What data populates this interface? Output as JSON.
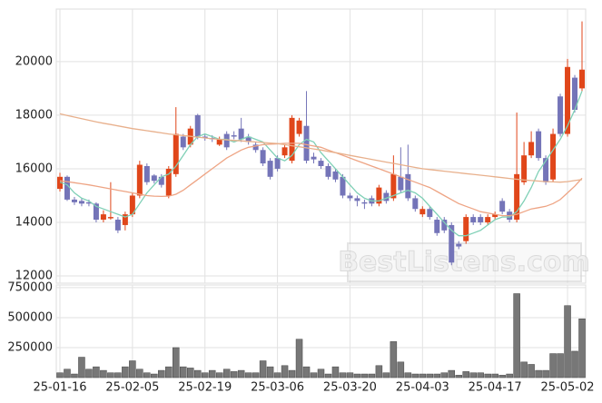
{
  "chart_data": [
    {
      "type": "candlestick",
      "categories": [
        "25-01-16",
        null,
        null,
        null,
        null,
        null,
        null,
        null,
        null,
        null,
        "25-02-05",
        null,
        null,
        null,
        null,
        null,
        null,
        null,
        null,
        null,
        "25-02-19",
        null,
        null,
        null,
        null,
        null,
        null,
        null,
        null,
        null,
        "25-03-06",
        null,
        null,
        null,
        null,
        null,
        null,
        null,
        null,
        null,
        "25-03-20",
        null,
        null,
        null,
        null,
        null,
        null,
        null,
        null,
        null,
        "25-04-03",
        null,
        null,
        null,
        null,
        null,
        null,
        null,
        null,
        null,
        "25-04-17",
        null,
        null,
        null,
        null,
        null,
        null,
        null,
        null,
        null,
        "25-05-02",
        null,
        null
      ],
      "open": [
        15250,
        15700,
        14850,
        14800,
        14750,
        14700,
        14100,
        14150,
        14100,
        13900,
        14300,
        15000,
        16100,
        15750,
        15700,
        15000,
        15800,
        17200,
        16900,
        18000,
        17200,
        17150,
        16900,
        17300,
        17250,
        17500,
        17200,
        16900,
        16700,
        16300,
        16400,
        16500,
        16300,
        17300,
        17600,
        16450,
        16300,
        16100,
        15900,
        15700,
        15000,
        14900,
        14750,
        14900,
        14700,
        15100,
        14900,
        15700,
        15800,
        14900,
        14300,
        14500,
        14100,
        14100,
        13900,
        13200,
        13300,
        14200,
        14200,
        14000,
        14200,
        14800,
        14400,
        14100,
        15500,
        16500,
        17400,
        16400,
        15600,
        18700,
        17300,
        19400,
        19000
      ],
      "high": [
        15850,
        15750,
        14950,
        14900,
        14850,
        14750,
        14450,
        15500,
        14200,
        14400,
        15100,
        16300,
        16200,
        15800,
        15800,
        16100,
        18300,
        17300,
        17600,
        18050,
        17300,
        17250,
        17200,
        17400,
        17400,
        17900,
        17300,
        17000,
        16800,
        16400,
        16500,
        16900,
        18000,
        17900,
        18900,
        16600,
        16400,
        16200,
        16000,
        15800,
        15100,
        15000,
        14850,
        15000,
        15400,
        15200,
        16500,
        16800,
        16900,
        15000,
        14600,
        14600,
        14200,
        14200,
        14000,
        13300,
        14300,
        14300,
        14300,
        14300,
        14400,
        14900,
        14500,
        18100,
        17000,
        17400,
        17500,
        16500,
        17500,
        18800,
        20100,
        19500,
        21500
      ],
      "low": [
        15150,
        14800,
        14650,
        14600,
        14600,
        14000,
        14000,
        14100,
        13600,
        13700,
        14200,
        14900,
        15400,
        15450,
        15300,
        14900,
        15700,
        16700,
        16800,
        17100,
        17050,
        17000,
        16850,
        16700,
        17100,
        17000,
        16900,
        16600,
        16100,
        15600,
        15900,
        16400,
        16200,
        17200,
        16200,
        16200,
        16000,
        15600,
        15500,
        14900,
        14800,
        14600,
        14500,
        14600,
        14600,
        14700,
        14800,
        15100,
        14800,
        14400,
        14200,
        14100,
        13500,
        13600,
        12400,
        13000,
        13200,
        13900,
        13900,
        13900,
        14100,
        14300,
        14000,
        14000,
        15400,
        16400,
        16300,
        15400,
        15500,
        17200,
        17200,
        18100,
        18900
      ],
      "close": [
        15700,
        14850,
        14750,
        14700,
        14700,
        14100,
        14300,
        14200,
        13700,
        14300,
        15000,
        16150,
        15500,
        15550,
        15400,
        16000,
        17300,
        16800,
        17500,
        17200,
        17150,
        17100,
        17100,
        16800,
        17200,
        17100,
        17000,
        16700,
        16200,
        15700,
        16000,
        16800,
        17900,
        17800,
        16300,
        16350,
        16100,
        15700,
        15600,
        15000,
        14900,
        14800,
        14700,
        14700,
        15300,
        14800,
        15800,
        15200,
        14900,
        14500,
        14500,
        14200,
        13600,
        13700,
        12500,
        13100,
        14200,
        14000,
        14000,
        14200,
        14300,
        14400,
        14100,
        15800,
        16500,
        17000,
        16400,
        15500,
        17300,
        17300,
        19800,
        18200,
        19700
      ],
      "up_color": "#e0461a",
      "down_color": "#7474b8",
      "series": [
        {
          "color": "#7fd0b6",
          "values": [
            15500,
            15400,
            15100,
            14900,
            14800,
            14600,
            14500,
            14400,
            14300,
            14200,
            14300,
            14700,
            15100,
            15400,
            15700,
            15800,
            16100,
            16500,
            16900,
            17200,
            17300,
            17200,
            17100,
            17100,
            17000,
            17100,
            17200,
            17100,
            17000,
            16700,
            16400,
            16300,
            16500,
            16900,
            17100,
            17000,
            16600,
            16300,
            16000,
            15700,
            15400,
            15100,
            14900,
            14800,
            14800,
            14900,
            15000,
            15100,
            15200,
            15100,
            14900,
            14600,
            14300,
            14000,
            13700,
            13500,
            13500,
            13600,
            13700,
            13900,
            14100,
            14200,
            14200,
            14400,
            14800,
            15300,
            15900,
            16300,
            16700,
            17100,
            17600,
            18200,
            18900
          ]
        },
        {
          "color": "#eea484",
          "values": [
            15550,
            15520,
            15480,
            15440,
            15400,
            15350,
            15300,
            15250,
            15200,
            15150,
            15100,
            15050,
            15000,
            14980,
            14970,
            14980,
            15050,
            15200,
            15400,
            15600,
            15800,
            16000,
            16200,
            16400,
            16550,
            16700,
            16800,
            16850,
            16900,
            16920,
            16930,
            16950,
            16950,
            16950,
            16900,
            16850,
            16800,
            16700,
            16600,
            16500,
            16400,
            16300,
            16200,
            16100,
            16000,
            15900,
            15800,
            15700,
            15600,
            15500,
            15400,
            15300,
            15150,
            15000,
            14850,
            14700,
            14600,
            14500,
            14400,
            14350,
            14300,
            14250,
            14250,
            14300,
            14400,
            14500,
            14550,
            14600,
            14700,
            14850,
            15100,
            15350,
            15650
          ]
        },
        {
          "color": "#e8b08c",
          "values": [
            18050,
            17990,
            17930,
            17870,
            17810,
            17750,
            17700,
            17650,
            17600,
            17550,
            17500,
            17460,
            17420,
            17380,
            17340,
            17300,
            17270,
            17240,
            17210,
            17180,
            17150,
            17120,
            17100,
            17080,
            17060,
            17040,
            17020,
            17000,
            16980,
            16960,
            16940,
            16900,
            16860,
            16820,
            16780,
            16740,
            16700,
            16650,
            16600,
            16550,
            16500,
            16450,
            16400,
            16350,
            16300,
            16250,
            16200,
            16150,
            16100,
            16050,
            16000,
            15970,
            15940,
            15910,
            15880,
            15850,
            15820,
            15790,
            15760,
            15730,
            15700,
            15670,
            15640,
            15610,
            15580,
            15560,
            15540,
            15520,
            15510,
            15500,
            15520,
            15560,
            15600
          ]
        }
      ],
      "ylim": [
        11730,
        21960
      ],
      "yticks": [
        12000,
        14000,
        16000,
        18000,
        20000
      ],
      "grid": true,
      "watermark": "BestListens.com"
    },
    {
      "type": "bar",
      "color": "#777777",
      "values": [
        40000,
        70000,
        30000,
        170000,
        70000,
        90000,
        60000,
        40000,
        40000,
        90000,
        140000,
        70000,
        40000,
        30000,
        60000,
        90000,
        250000,
        90000,
        80000,
        60000,
        40000,
        60000,
        40000,
        70000,
        50000,
        60000,
        40000,
        40000,
        140000,
        90000,
        40000,
        100000,
        60000,
        320000,
        90000,
        40000,
        70000,
        30000,
        90000,
        40000,
        40000,
        30000,
        30000,
        30000,
        100000,
        40000,
        300000,
        130000,
        40000,
        30000,
        30000,
        30000,
        30000,
        40000,
        60000,
        20000,
        50000,
        40000,
        40000,
        30000,
        30000,
        20000,
        30000,
        700000,
        130000,
        110000,
        60000,
        60000,
        200000,
        200000,
        600000,
        220000,
        490000
      ],
      "ylim": [
        0,
        772000
      ],
      "yticks": [
        250000,
        500000,
        750000
      ],
      "grid": true
    }
  ]
}
